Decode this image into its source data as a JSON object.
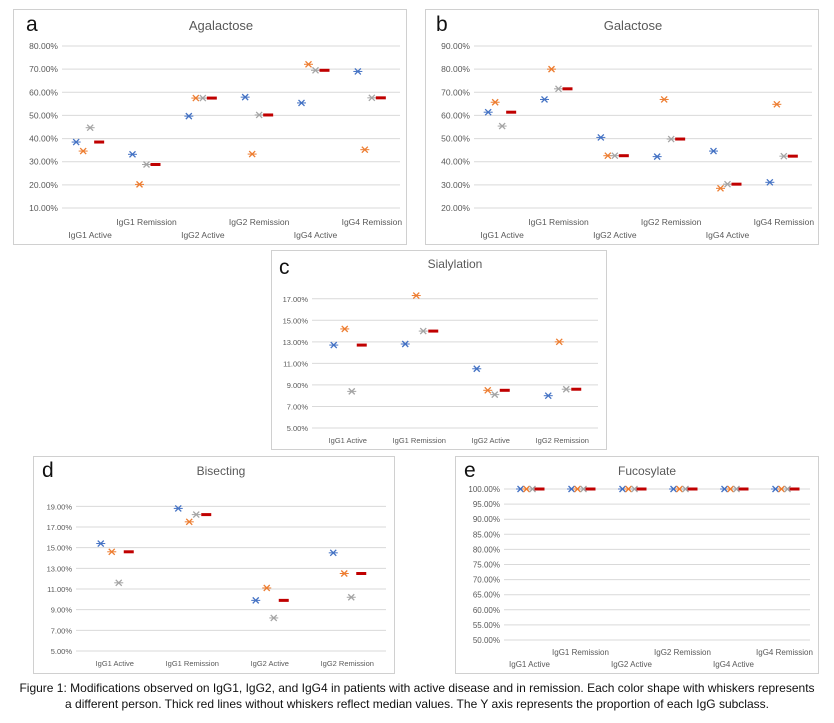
{
  "colors": {
    "person1": "#4472c4",
    "person2": "#ed7d31",
    "person3": "#a5a5a5",
    "median": "#c00000",
    "grid": "#d9d9d9",
    "title": "#595959",
    "tick": "#595959"
  },
  "caption": {
    "line1": "Figure 1: Modifications observed on IgG1, IgG2, and IgG4 in patients with active disease and in remission. Each color shape with whiskers represents",
    "line2": "a different person. Thick red lines without whiskers reflect median values. The Y axis represents the proportion of each IgG subclass."
  },
  "chart_data": [
    {
      "id": "a",
      "letter": "a",
      "type": "scatter",
      "title": "Agalactose",
      "categories": [
        "IgG1 Active",
        "IgG1 Remission",
        "IgG2 Active",
        "IgG2 Remission",
        "IgG4 Active",
        "IgG4 Remission"
      ],
      "yticks": [
        "10.00%",
        "20.00%",
        "30.00%",
        "40.00%",
        "50.00%",
        "60.00%",
        "70.00%",
        "80.00%"
      ],
      "ylim": [
        10,
        80
      ],
      "grid": true,
      "series": [
        {
          "values": [
            38.5,
            33.2,
            49.7,
            57.9,
            55.4,
            69
          ]
        },
        {
          "values": [
            34.6,
            20.2,
            57.5,
            33.3,
            72.1,
            35.2
          ]
        },
        {
          "values": [
            44.7,
            28.8,
            57.5,
            50.2,
            69.5,
            57.6
          ]
        }
      ],
      "median": [
        38.5,
        28.8,
        57.5,
        50.2,
        69.5,
        57.6
      ]
    },
    {
      "id": "b",
      "letter": "b",
      "type": "scatter",
      "title": "Galactose",
      "categories": [
        "IgG1 Active",
        "IgG1 Remission",
        "IgG2 Active",
        "IgG2 Remission",
        "IgG4 Active",
        "IgG4 Remission"
      ],
      "yticks": [
        "20.00%",
        "30.00%",
        "40.00%",
        "50.00%",
        "60.00%",
        "70.00%",
        "80.00%",
        "90.00%"
      ],
      "ylim": [
        20,
        90
      ],
      "grid": true,
      "series": [
        {
          "values": [
            61.4,
            66.9,
            50.5,
            42.2,
            44.6,
            31.1
          ]
        },
        {
          "values": [
            65.7,
            80,
            42.6,
            66.9,
            28.5,
            64.8
          ]
        },
        {
          "values": [
            55.4,
            71.5,
            42.6,
            49.8,
            30.3,
            42.4
          ]
        }
      ],
      "median": [
        61.4,
        71.5,
        42.6,
        49.8,
        30.3,
        42.4
      ]
    },
    {
      "id": "c",
      "letter": "c",
      "type": "scatter",
      "title": "Sialylation",
      "categories": [
        "IgG1 Active",
        "IgG1 Remission",
        "IgG2 Active",
        "IgG2 Remission"
      ],
      "yticks": [
        "5.00%",
        "7.00%",
        "9.00%",
        "11.00%",
        "13.00%",
        "15.00%",
        "17.00%"
      ],
      "ylim": [
        5,
        18
      ],
      "grid": true,
      "series": [
        {
          "values": [
            12.7,
            12.8,
            10.5,
            8
          ]
        },
        {
          "values": [
            14.2,
            17.3,
            8.5,
            13
          ]
        },
        {
          "values": [
            8.4,
            14,
            8.1,
            8.6
          ]
        }
      ],
      "median": [
        12.7,
        14,
        8.5,
        8.6
      ]
    },
    {
      "id": "d",
      "letter": "d",
      "type": "scatter",
      "title": "Bisecting",
      "categories": [
        "IgG1 Active",
        "IgG1 Remission",
        "IgG2 Active",
        "IgG2 Remission"
      ],
      "yticks": [
        "5.00%",
        "7.00%",
        "9.00%",
        "11.00%",
        "13.00%",
        "15.00%",
        "17.00%",
        "19.00%"
      ],
      "ylim": [
        5,
        20
      ],
      "grid": true,
      "series": [
        {
          "values": [
            15.4,
            18.8,
            9.9,
            14.5
          ]
        },
        {
          "values": [
            14.6,
            17.5,
            11.1,
            12.5
          ]
        },
        {
          "values": [
            11.6,
            18.2,
            8.2,
            10.2
          ]
        }
      ],
      "median": [
        14.6,
        18.2,
        9.9,
        12.5
      ]
    },
    {
      "id": "e",
      "letter": "e",
      "type": "scatter",
      "title": "Fucosylate",
      "categories": [
        "IgG1 Active",
        "IgG1 Remission",
        "IgG2 Active",
        "IgG2 Remission",
        "IgG4 Active",
        "IgG4 Remission"
      ],
      "yticks": [
        "50.00%",
        "55.00%",
        "60.00%",
        "65.00%",
        "70.00%",
        "75.00%",
        "80.00%",
        "85.00%",
        "90.00%",
        "95.00%",
        "100.00%"
      ],
      "ylim": [
        50,
        100
      ],
      "grid": true,
      "series": [
        {
          "values": [
            100,
            100,
            100,
            100,
            100,
            100
          ]
        },
        {
          "values": [
            100,
            100,
            100,
            100,
            100,
            100
          ]
        },
        {
          "values": [
            100,
            100,
            100,
            100,
            100,
            100
          ]
        }
      ],
      "median": [
        100,
        100,
        100,
        100,
        100,
        100
      ]
    }
  ]
}
